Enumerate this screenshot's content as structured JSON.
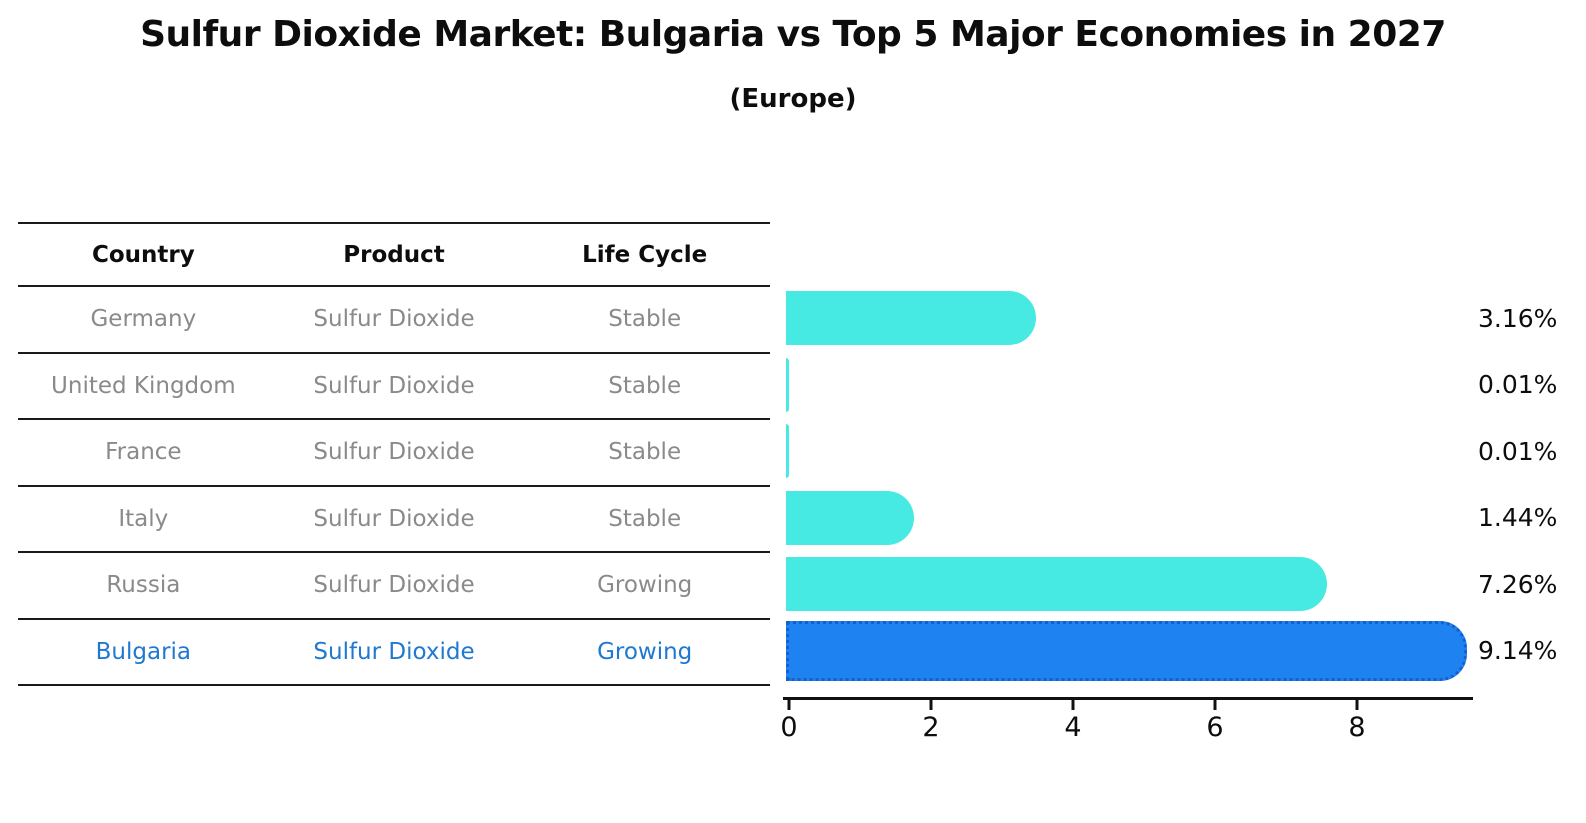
{
  "title": "Sulfur Dioxide Market: Bulgaria vs Top 5 Major Economies in 2027",
  "subtitle": "(Europe)",
  "table": {
    "headers": [
      "Country",
      "Product",
      "Life Cycle"
    ],
    "rows": [
      {
        "country": "Germany",
        "product": "Sulfur Dioxide",
        "life_cycle": "Stable"
      },
      {
        "country": "United Kingdom",
        "product": "Sulfur Dioxide",
        "life_cycle": "Stable"
      },
      {
        "country": "France",
        "product": "Sulfur Dioxide",
        "life_cycle": "Stable"
      },
      {
        "country": "Italy",
        "product": "Sulfur Dioxide",
        "life_cycle": "Stable"
      },
      {
        "country": "Russia",
        "product": "Sulfur Dioxide",
        "life_cycle": "Growing"
      },
      {
        "country": "Bulgaria",
        "product": "Sulfur Dioxide",
        "life_cycle": "Growing",
        "highlight": true
      }
    ]
  },
  "chart_data": {
    "type": "bar",
    "orientation": "horizontal",
    "title": "Sulfur Dioxide Market: Bulgaria vs Top 5 Major Economies in 2027 (Europe)",
    "categories": [
      "Germany",
      "United Kingdom",
      "France",
      "Italy",
      "Russia",
      "Bulgaria"
    ],
    "values": [
      3.16,
      0.01,
      0.01,
      1.44,
      7.26,
      9.14
    ],
    "value_labels": [
      "3.16%",
      "0.01%",
      "0.01%",
      "1.44%",
      "7.26%",
      "9.14%"
    ],
    "highlight_index": 5,
    "xlabel": "",
    "ylabel": "",
    "xticks": [
      0,
      2,
      4,
      6,
      8
    ],
    "xtick_labels": [
      "0",
      "2",
      "4",
      "6",
      "8"
    ],
    "xlim": [
      0,
      9.7
    ],
    "grid": false,
    "legend": false
  },
  "colors": {
    "bar_default": "#47e9e3",
    "bar_highlight": "#1e82f0",
    "bar_highlight_border": "#155fd0",
    "row_text": "#8a8a8a",
    "highlight_text": "#1f78d1",
    "axis": "#111111",
    "title_text": "#0d0d0d"
  }
}
